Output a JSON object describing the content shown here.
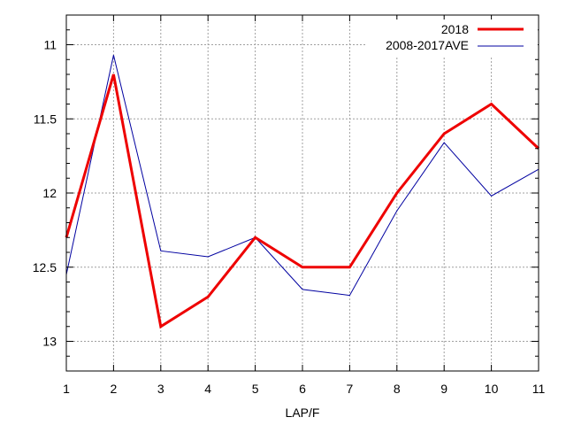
{
  "chart_data": {
    "type": "line",
    "title": "",
    "xlabel": "LAP/F",
    "ylabel": "",
    "x": [
      1,
      2,
      3,
      4,
      5,
      6,
      7,
      8,
      9,
      10,
      11
    ],
    "xlim": [
      1,
      11
    ],
    "ylim": [
      10.8,
      13.2
    ],
    "y_inverted": true,
    "x_ticks": [
      "1",
      "2",
      "3",
      "4",
      "5",
      "6",
      "7",
      "8",
      "9",
      "10",
      "11"
    ],
    "y_ticks": [
      "11",
      "11.5",
      "12",
      "12.5",
      "13"
    ],
    "y_tick_values": [
      11,
      11.5,
      12,
      12.5,
      13
    ],
    "y_minor_step": 0.1,
    "grid": true,
    "legend_position": "top-right",
    "series": [
      {
        "name": "2018",
        "color": "#ee0000",
        "values": [
          12.3,
          11.2,
          12.9,
          12.7,
          12.3,
          12.5,
          12.5,
          12.0,
          11.6,
          11.4,
          11.7
        ]
      },
      {
        "name": "2008-2017AVE",
        "color": "#0000a0",
        "values": [
          12.55,
          11.07,
          12.39,
          12.43,
          12.3,
          12.65,
          12.69,
          12.12,
          11.66,
          12.02,
          11.84
        ]
      }
    ]
  }
}
